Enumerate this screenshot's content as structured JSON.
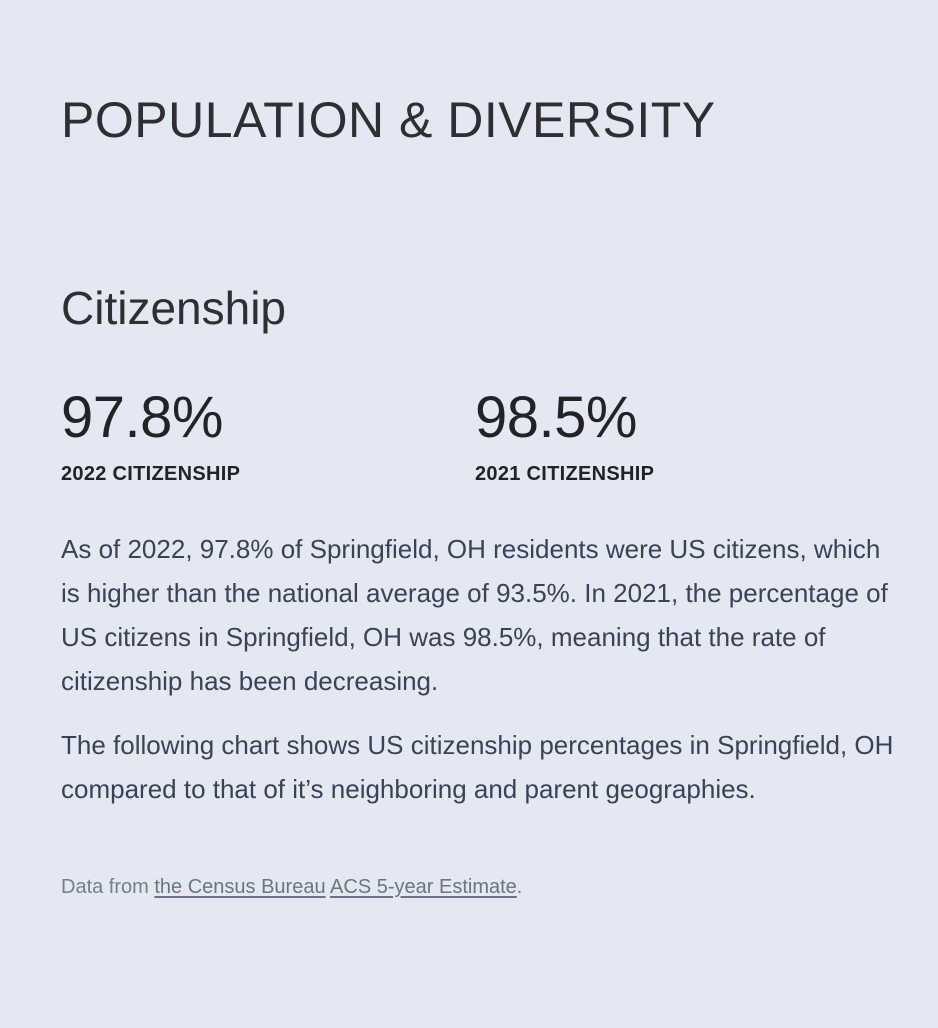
{
  "section": {
    "title": "POPULATION & DIVERSITY"
  },
  "citizenship": {
    "title": "Citizenship",
    "stats": [
      {
        "value": "97.8%",
        "label": "2022 CITIZENSHIP"
      },
      {
        "value": "98.5%",
        "label": "2021 CITIZENSHIP"
      }
    ],
    "paragraphs": [
      "As of 2022, 97.8% of Springfield, OH residents were US citizens, which is higher than the national average of 93.5%. In 2021, the percentage of US citizens in Springfield, OH was 98.5%, meaning that the rate of citizenship has been decreasing.",
      "The following chart shows US citizenship percentages in Springfield, OH compared to that of it’s neighboring and parent geographies."
    ],
    "source": {
      "prefix": "Data from ",
      "link1": "the Census Bureau",
      "separator": " ",
      "link2": "ACS 5-year Estimate",
      "suffix": "."
    }
  }
}
